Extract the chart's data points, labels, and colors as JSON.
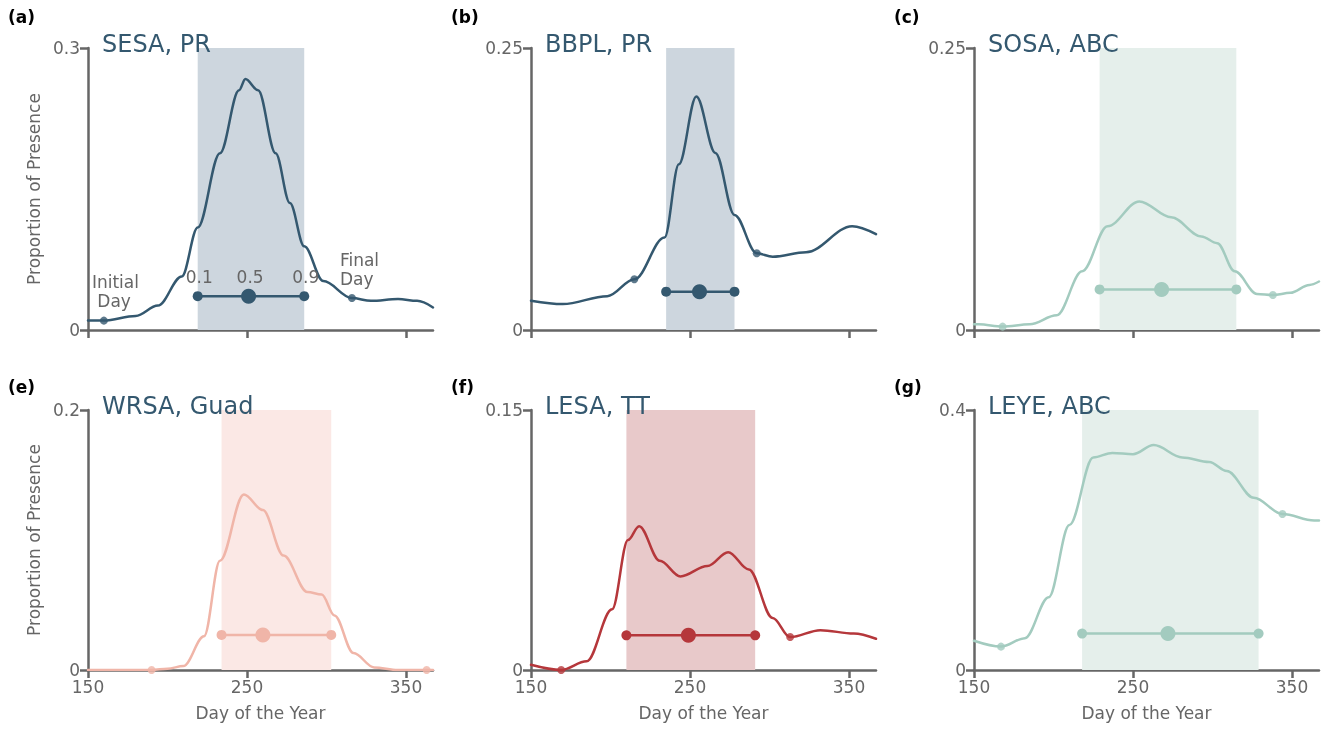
{
  "chart_data": [
    {
      "type": "line",
      "title": "SESA, PR",
      "ylabel": "Proportion of Presence",
      "xlim": [
        150,
        367
      ],
      "ylim": [
        0,
        0.3
      ],
      "xticks": [
        {
          "value": 150,
          "label": null
        },
        {
          "value": 250,
          "label": null
        },
        {
          "value": 350,
          "label": null
        }
      ],
      "yticks": [
        0,
        0.3
      ],
      "tick_labels": "y",
      "series": [
        {
          "color": "#34586f",
          "marker": "none",
          "x": [
            150,
            160,
            180,
            194,
            209,
            219,
            233,
            245,
            249,
            257,
            268,
            277,
            286,
            298,
            316,
            328,
            345,
            357,
            367
          ],
          "values": [
            0.01,
            0.01,
            0.015,
            0.026,
            0.057,
            0.109,
            0.188,
            0.255,
            0.267,
            0.255,
            0.188,
            0.135,
            0.089,
            0.052,
            0.034,
            0.031,
            0.033,
            0.031,
            0.024
          ]
        },
        {
          "type": "scatter",
          "color": "#34586f",
          "marker": "circle",
          "x": [
            160,
            316
          ],
          "values": [
            0.01,
            0.034
          ]
        },
        {
          "color": "#34586f",
          "marker": "circle",
          "x": [
            219,
            251,
            286
          ],
          "values": [
            0.036,
            0.036,
            0.036
          ]
        }
      ],
      "bands": [
        {
          "axis": "x",
          "from": 219,
          "to": 286,
          "color": "#cdd6de"
        }
      ],
      "annotations": [
        "(a)",
        {
          "text": "Initial Day",
          "x": 160,
          "y": 0.01
        },
        {
          "text": "0.1",
          "x": 219,
          "y": 0.036
        },
        {
          "text": "0.5",
          "x": 251,
          "y": 0.036
        },
        {
          "text": "0.9",
          "x": 286,
          "y": 0.036
        },
        {
          "text": "Final Day",
          "x": 316,
          "y": 0.034
        }
      ]
    },
    {
      "type": "line",
      "title": "BBPL, PR",
      "xlim": [
        150,
        367
      ],
      "ylim": [
        0,
        0.25
      ],
      "xticks": [
        {
          "value": 150,
          "label": null
        },
        {
          "value": 250,
          "label": null
        },
        {
          "value": 350,
          "label": null
        }
      ],
      "yticks": [
        0,
        0.25
      ],
      "tick_labels": "y",
      "series": [
        {
          "color": "#34586f",
          "marker": "none",
          "x": [
            150,
            170,
            198,
            215,
            234,
            243,
            254,
            266,
            278,
            292,
            302,
            323,
            352,
            367
          ],
          "values": [
            0.026,
            0.023,
            0.03,
            0.045,
            0.082,
            0.147,
            0.207,
            0.157,
            0.102,
            0.068,
            0.065,
            0.069,
            0.092,
            0.085
          ]
        },
        {
          "type": "scatter",
          "color": "#34586f",
          "marker": "circle",
          "x": [
            215,
            292
          ],
          "values": [
            0.045,
            0.068
          ]
        },
        {
          "color": "#34586f",
          "marker": "circle",
          "x": [
            235,
            256,
            278
          ],
          "values": [
            0.034,
            0.034,
            0.034
          ]
        }
      ],
      "bands": [
        {
          "axis": "x",
          "from": 235,
          "to": 278,
          "color": "#cdd6de"
        }
      ],
      "annotations": [
        "(b)"
      ]
    },
    {
      "type": "line",
      "title": "SOSA, ABC",
      "xlim": [
        150,
        367
      ],
      "ylim": [
        0,
        0.25
      ],
      "xticks": [
        {
          "value": 150,
          "label": null
        },
        {
          "value": 250,
          "label": null
        },
        {
          "value": 350,
          "label": null
        }
      ],
      "yticks": [
        0,
        0.25
      ],
      "tick_labels": "y",
      "series": [
        {
          "color": "#a3cbbf",
          "marker": "none",
          "x": [
            150,
            153,
            168,
            185,
            202,
            218,
            234,
            254,
            274,
            293,
            303,
            314,
            328,
            338,
            349,
            361,
            367
          ],
          "values": [
            0.005,
            0.005,
            0.003,
            0.005,
            0.013,
            0.052,
            0.092,
            0.114,
            0.1,
            0.083,
            0.077,
            0.052,
            0.032,
            0.031,
            0.033,
            0.04,
            0.043
          ]
        },
        {
          "type": "scatter",
          "color": "#a3cbbf",
          "marker": "circle",
          "x": [
            168,
            338
          ],
          "values": [
            0.003,
            0.031
          ]
        },
        {
          "color": "#a3cbbf",
          "marker": "circle",
          "x": [
            229,
            268,
            315
          ],
          "values": [
            0.036,
            0.036,
            0.036
          ]
        }
      ],
      "bands": [
        {
          "axis": "x",
          "from": 229,
          "to": 315,
          "color": "#e5efeb"
        }
      ],
      "annotations": [
        "(c)"
      ]
    },
    {
      "type": "line",
      "title": "WRSA, Guad",
      "xlabel": "Day of the Year",
      "ylabel": "Proportion of Presence",
      "xlim": [
        150,
        367
      ],
      "ylim": [
        0,
        0.2
      ],
      "xticks": [
        150,
        250,
        350
      ],
      "yticks": [
        0,
        0.2
      ],
      "series": [
        {
          "color": "#f0b5a8",
          "marker": "none",
          "x": [
            150,
            190,
            200,
            210,
            223,
            233,
            248,
            260,
            273,
            288,
            297,
            305,
            317,
            330,
            345,
            367
          ],
          "values": [
            0,
            0,
            0.001,
            0.003,
            0.026,
            0.084,
            0.135,
            0.123,
            0.088,
            0.06,
            0.058,
            0.042,
            0.013,
            0.002,
            0,
            0
          ]
        },
        {
          "type": "scatter",
          "color": "#f0b5a8",
          "marker": "circle",
          "x": [
            190,
            363
          ],
          "values": [
            0,
            0
          ]
        },
        {
          "color": "#f0b5a8",
          "marker": "circle",
          "x": [
            234,
            260,
            303
          ],
          "values": [
            0.027,
            0.027,
            0.027
          ]
        }
      ],
      "bands": [
        {
          "axis": "x",
          "from": 234,
          "to": 303,
          "color": "#fbe8e5"
        }
      ],
      "annotations": [
        "(e)"
      ]
    },
    {
      "type": "line",
      "title": "LESA, TT",
      "xlabel": "Day of the Year",
      "xlim": [
        150,
        367
      ],
      "ylim": [
        0,
        0.15
      ],
      "xticks": [
        150,
        250,
        350
      ],
      "yticks": [
        0,
        0.15
      ],
      "series": [
        {
          "color": "#b5373b",
          "marker": "none",
          "x": [
            150,
            169,
            185,
            201,
            211,
            218,
            231,
            244,
            261,
            274,
            287,
            302,
            313,
            332,
            353,
            367
          ],
          "values": [
            0.003,
            0,
            0.005,
            0.035,
            0.075,
            0.083,
            0.063,
            0.054,
            0.06,
            0.068,
            0.058,
            0.03,
            0.019,
            0.023,
            0.021,
            0.018
          ]
        },
        {
          "type": "scatter",
          "color": "#b5373b",
          "marker": "circle",
          "x": [
            169,
            313
          ],
          "values": [
            0,
            0.019
          ]
        },
        {
          "color": "#b5373b",
          "marker": "circle",
          "x": [
            210,
            249,
            291
          ],
          "values": [
            0.02,
            0.02,
            0.02
          ]
        }
      ],
      "bands": [
        {
          "axis": "x",
          "from": 210,
          "to": 291,
          "color": "#e8c9ca"
        }
      ],
      "annotations": [
        "(f)"
      ]
    },
    {
      "type": "line",
      "title": "LEYE, ABC",
      "xlabel": "Day of the Year",
      "xlim": [
        150,
        367
      ],
      "ylim": [
        0,
        0.4
      ],
      "xticks": [
        150,
        250,
        350
      ],
      "yticks": [
        0,
        0.4
      ],
      "series": [
        {
          "color": "#a3cbbf",
          "marker": "none",
          "x": [
            150,
            167,
            182,
            197,
            210,
            225,
            237,
            250,
            263,
            281,
            298,
            309,
            326,
            344,
            364,
            367
          ],
          "values": [
            0.045,
            0.036,
            0.049,
            0.112,
            0.223,
            0.327,
            0.334,
            0.332,
            0.346,
            0.327,
            0.32,
            0.306,
            0.265,
            0.24,
            0.23,
            0.23
          ]
        },
        {
          "type": "scatter",
          "color": "#a3cbbf",
          "marker": "circle",
          "x": [
            167,
            344
          ],
          "values": [
            0.036,
            0.24
          ]
        },
        {
          "color": "#a3cbbf",
          "marker": "circle",
          "x": [
            218,
            272,
            329
          ],
          "values": [
            0.056,
            0.056,
            0.056
          ]
        }
      ],
      "bands": [
        {
          "axis": "x",
          "from": 218,
          "to": 329,
          "color": "#e5efeb"
        }
      ],
      "annotations": [
        "(g)"
      ]
    }
  ]
}
